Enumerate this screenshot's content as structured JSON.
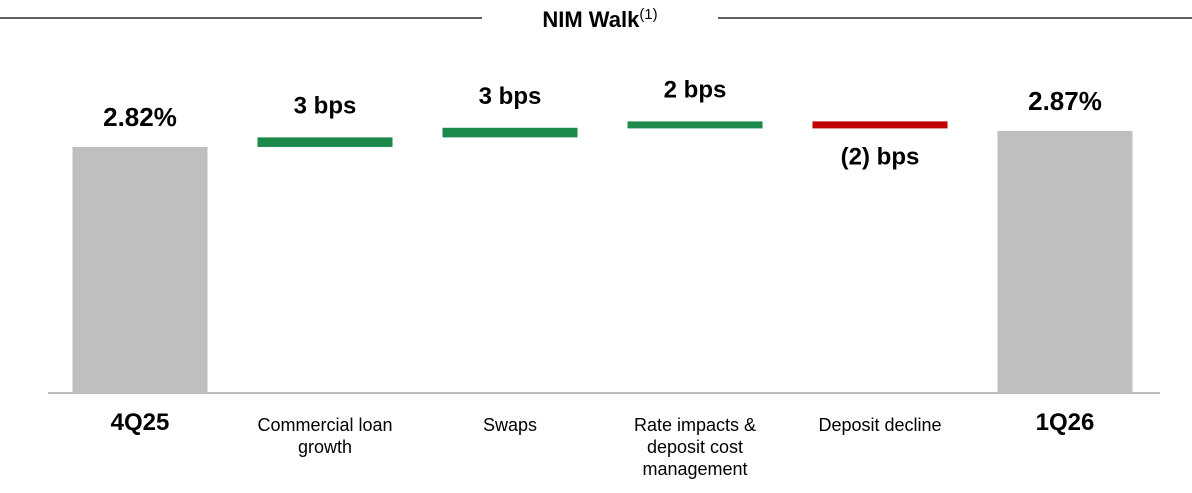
{
  "chart_data": {
    "type": "waterfall",
    "title": "NIM Walk",
    "title_note": "(1)",
    "categories": [
      "4Q25",
      "Commercial loan growth",
      "Swaps",
      "Rate impacts & deposit cost management",
      "Deposit decline",
      "1Q26"
    ],
    "measures": [
      "total",
      "relative",
      "relative",
      "relative",
      "relative",
      "total"
    ],
    "values": [
      2.82,
      0.03,
      0.03,
      0.02,
      -0.02,
      2.87
    ],
    "value_labels": [
      "2.82%",
      "3 bps",
      "3 bps",
      "2 bps",
      "(2) bps",
      "2.87%"
    ],
    "colors": {
      "total": "#bfbfbf",
      "increase": "#1b8a4b",
      "decrease": "#c00000"
    },
    "ylim": [
      2.05,
      2.9
    ]
  }
}
